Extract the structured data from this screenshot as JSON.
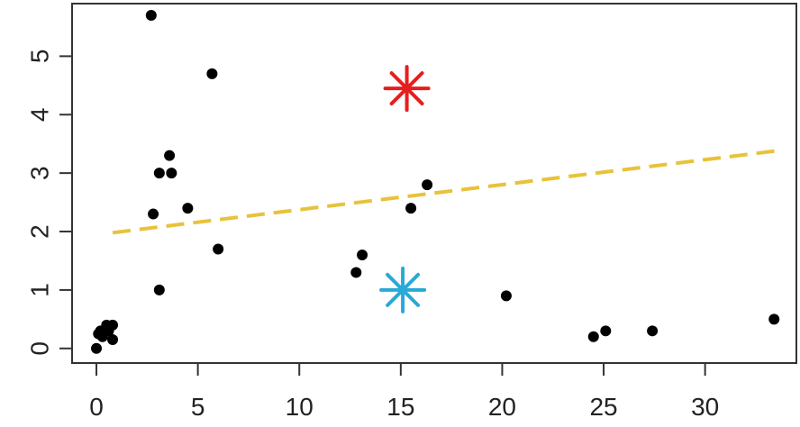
{
  "chart_data": {
    "type": "scatter",
    "title": "",
    "xlabel": "",
    "ylabel": "",
    "xlim": [
      -1.2,
      34.5
    ],
    "ylim": [
      -0.25,
      5.9
    ],
    "grid": false,
    "x_ticks": [
      0,
      5,
      10,
      15,
      20,
      25,
      30
    ],
    "y_ticks": [
      0,
      1,
      2,
      3,
      4,
      5
    ],
    "series": [
      {
        "type": "scatter",
        "color": "#000000",
        "points": [
          [
            0.0,
            0.0
          ],
          [
            0.1,
            0.25
          ],
          [
            0.2,
            0.3
          ],
          [
            0.3,
            0.2
          ],
          [
            0.5,
            0.4
          ],
          [
            0.6,
            0.3
          ],
          [
            0.8,
            0.4
          ],
          [
            0.8,
            0.15
          ],
          [
            2.7,
            5.7
          ],
          [
            2.8,
            2.3
          ],
          [
            3.1,
            3.0
          ],
          [
            3.1,
            1.0
          ],
          [
            3.6,
            3.3
          ],
          [
            3.7,
            3.0
          ],
          [
            4.5,
            2.4
          ],
          [
            5.7,
            4.7
          ],
          [
            6.0,
            1.7
          ],
          [
            12.8,
            1.3
          ],
          [
            13.1,
            1.6
          ],
          [
            15.5,
            2.4
          ],
          [
            16.3,
            2.8
          ],
          [
            20.2,
            0.9
          ],
          [
            24.5,
            0.2
          ],
          [
            25.1,
            0.3
          ],
          [
            27.4,
            0.3
          ],
          [
            33.4,
            0.5
          ]
        ]
      },
      {
        "type": "marker",
        "marker": "asterisk",
        "color": "#e51e1e",
        "points": [
          [
            15.3,
            4.45
          ]
        ]
      },
      {
        "type": "marker",
        "marker": "asterisk",
        "color": "#29a9d6",
        "points": [
          [
            15.1,
            1.0
          ]
        ]
      },
      {
        "type": "line",
        "style": "dashed",
        "color": "#e8c23a",
        "points": [
          [
            0.8,
            1.98
          ],
          [
            33.5,
            3.38
          ]
        ]
      }
    ]
  }
}
